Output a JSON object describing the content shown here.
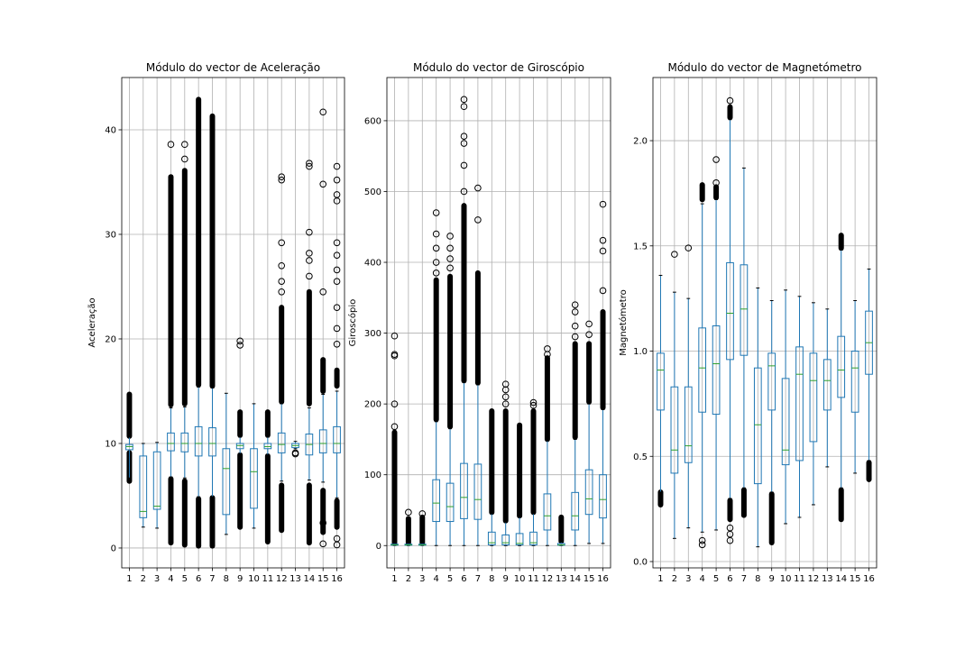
{
  "chart_data": [
    {
      "type": "boxplot",
      "title": "Módulo do vector de Aceleração",
      "ylabel": "Aceleração",
      "categories": [
        "1",
        "2",
        "3",
        "4",
        "5",
        "6",
        "7",
        "8",
        "9",
        "10",
        "11",
        "12",
        "13",
        "14",
        "15",
        "16"
      ],
      "ylim": [
        -1.9,
        45.0
      ],
      "yticks": [
        0,
        10,
        20,
        30,
        40
      ],
      "ytick_labels": [
        "0",
        "10",
        "20",
        "30",
        "40"
      ],
      "grid": true,
      "boxes": [
        {
          "whislo": 6.7,
          "q1": 9.4,
          "med": 9.7,
          "q3": 9.9,
          "whishi": 10.6,
          "fliers_lo": [
            6.4,
            9.1
          ],
          "fliers_hi": [
            10.7,
            14.7
          ]
        },
        {
          "whislo": 2.0,
          "q1": 2.9,
          "med": 3.5,
          "q3": 8.8,
          "whishi": 10.0,
          "fliers_lo": [],
          "fliers_hi": []
        },
        {
          "whislo": 1.9,
          "q1": 3.7,
          "med": 4.0,
          "q3": 9.2,
          "whishi": 10.1,
          "fliers_lo": [],
          "fliers_hi": []
        },
        {
          "whislo": 6.8,
          "q1": 9.3,
          "med": 10.0,
          "q3": 11.0,
          "whishi": 13.4,
          "fliers_lo": [
            0.5,
            6.6
          ],
          "fliers_hi": [
            13.7,
            35.5
          ],
          "extra_fliers": [
            38.6
          ]
        },
        {
          "whislo": 6.7,
          "q1": 9.2,
          "med": 10.0,
          "q3": 11.0,
          "whishi": 13.5,
          "fliers_lo": [
            0.3,
            6.4
          ],
          "fliers_hi": [
            13.8,
            36.1
          ],
          "extra_fliers": [
            37.2,
            38.6
          ]
        },
        {
          "whislo": 4.9,
          "q1": 8.8,
          "med": 10.0,
          "q3": 11.6,
          "whishi": 15.4,
          "fliers_lo": [
            0.2,
            4.7
          ],
          "fliers_hi": [
            15.6,
            42.9
          ]
        },
        {
          "whislo": 4.9,
          "q1": 8.8,
          "med": 10.0,
          "q3": 11.5,
          "whishi": 15.3,
          "fliers_lo": [
            0.2,
            4.8
          ],
          "fliers_hi": [
            15.5,
            41.3
          ]
        },
        {
          "whislo": 1.3,
          "q1": 3.2,
          "med": 7.6,
          "q3": 9.5,
          "whishi": 14.8,
          "fliers_lo": [],
          "fliers_hi": []
        },
        {
          "whislo": 9.0,
          "q1": 9.5,
          "med": 9.8,
          "q3": 10.0,
          "whishi": 10.6,
          "fliers_lo": [
            2.0,
            8.9
          ],
          "fliers_hi": [
            10.8,
            13.0
          ],
          "extra_fliers": [
            19.4,
            19.8
          ]
        },
        {
          "whislo": 1.9,
          "q1": 3.8,
          "med": 7.3,
          "q3": 9.5,
          "whishi": 13.8,
          "fliers_lo": [],
          "fliers_hi": []
        },
        {
          "whislo": 8.9,
          "q1": 9.5,
          "med": 9.7,
          "q3": 10.0,
          "whishi": 10.6,
          "fliers_lo": [
            0.6,
            8.8
          ],
          "fliers_hi": [
            10.8,
            13.0
          ]
        },
        {
          "whislo": 6.4,
          "q1": 9.1,
          "med": 9.9,
          "q3": 11.0,
          "whishi": 13.8,
          "fliers_lo": [
            1.7,
            6.0
          ],
          "fliers_hi": [
            14.0,
            23.0
          ],
          "extra_fliers": [
            24.5,
            25.5,
            27.0,
            29.2,
            35.2,
            35.5
          ]
        },
        {
          "whislo": 9.5,
          "q1": 9.6,
          "med": 9.8,
          "q3": 10.0,
          "whishi": 10.2,
          "fliers_lo": [],
          "fliers_hi": [],
          "extra_fliers": [
            9.0,
            9.1
          ]
        },
        {
          "whislo": 6.5,
          "q1": 8.9,
          "med": 9.9,
          "q3": 10.9,
          "whishi": 13.4,
          "fliers_lo": [
            0.5,
            6.0
          ],
          "fliers_hi": [
            13.8,
            24.5
          ],
          "extra_fliers": [
            26.0,
            27.5,
            28.2,
            30.2,
            36.5,
            36.8
          ]
        },
        {
          "whislo": 6.3,
          "q1": 9.1,
          "med": 10.0,
          "q3": 11.3,
          "whishi": 14.7,
          "fliers_lo": [
            1.5,
            5.5
          ],
          "fliers_hi": [
            15.0,
            18.0
          ],
          "extra_fliers": [
            0.4,
            2.4,
            24.5,
            34.8,
            41.7
          ]
        },
        {
          "whislo": 4.8,
          "q1": 9.1,
          "med": 10.0,
          "q3": 11.6,
          "whishi": 15.0,
          "fliers_lo": [
            2.0,
            4.5
          ],
          "fliers_hi": [
            15.5,
            17.0
          ],
          "extra_fliers": [
            0.3,
            0.9,
            19.5,
            21.0,
            23.0,
            25.5,
            26.6,
            28.0,
            29.2,
            33.2,
            33.8,
            35.2,
            36.5
          ]
        }
      ]
    },
    {
      "type": "boxplot",
      "title": "Módulo do vector de Giroscópio",
      "ylabel": "Giroscópio",
      "categories": [
        "1",
        "2",
        "3",
        "4",
        "5",
        "6",
        "7",
        "8",
        "9",
        "10",
        "11",
        "12",
        "13",
        "14",
        "15",
        "16"
      ],
      "ylim": [
        -31.5,
        661.0
      ],
      "yticks": [
        0,
        100,
        200,
        300,
        400,
        500,
        600
      ],
      "ytick_labels": [
        "0",
        "100",
        "200",
        "300",
        "400",
        "500",
        "600"
      ],
      "grid": true,
      "boxes": [
        {
          "whislo": 0,
          "q1": 0.5,
          "med": 1,
          "q3": 2,
          "whishi": 3,
          "fliers_lo": [],
          "fliers_hi": [
            4,
            160
          ],
          "extra_fliers": [
            168,
            200,
            268,
            270,
            296
          ]
        },
        {
          "whislo": 0,
          "q1": 0.5,
          "med": 1,
          "q3": 2,
          "whishi": 3,
          "fliers_lo": [],
          "fliers_hi": [
            4,
            38
          ],
          "extra_fliers": [
            47
          ]
        },
        {
          "whislo": 0,
          "q1": 0.5,
          "med": 1,
          "q3": 2,
          "whishi": 3,
          "fliers_lo": [],
          "fliers_hi": [
            4,
            40
          ],
          "extra_fliers": [
            45
          ]
        },
        {
          "whislo": 0,
          "q1": 34,
          "med": 60,
          "q3": 93,
          "whishi": 175,
          "fliers_lo": [],
          "fliers_hi": [
            178,
            375
          ],
          "extra_fliers": [
            385,
            400,
            420,
            440,
            470
          ]
        },
        {
          "whislo": 0,
          "q1": 34,
          "med": 55,
          "q3": 88,
          "whishi": 165,
          "fliers_lo": [],
          "fliers_hi": [
            168,
            380
          ],
          "extra_fliers": [
            392,
            405,
            420,
            437
          ]
        },
        {
          "whislo": 0,
          "q1": 38,
          "med": 68,
          "q3": 116,
          "whishi": 230,
          "fliers_lo": [],
          "fliers_hi": [
            233,
            480
          ],
          "extra_fliers": [
            500,
            537,
            568,
            578,
            620,
            630
          ]
        },
        {
          "whislo": 0,
          "q1": 37,
          "med": 65,
          "q3": 115,
          "whishi": 227,
          "fliers_lo": [],
          "fliers_hi": [
            230,
            385
          ],
          "extra_fliers": [
            460,
            505
          ]
        },
        {
          "whislo": 0,
          "q1": 1,
          "med": 4,
          "q3": 19,
          "whishi": 45,
          "fliers_lo": [],
          "fliers_hi": [
            47,
            190
          ]
        },
        {
          "whislo": 0,
          "q1": 1,
          "med": 4,
          "q3": 15,
          "whishi": 33,
          "fliers_lo": [],
          "fliers_hi": [
            35,
            190
          ],
          "extra_fliers": [
            200,
            210,
            220,
            228
          ]
        },
        {
          "whislo": 0,
          "q1": 1,
          "med": 3,
          "q3": 17,
          "whishi": 40,
          "fliers_lo": [],
          "fliers_hi": [
            42,
            170
          ]
        },
        {
          "whislo": 0,
          "q1": 1,
          "med": 4,
          "q3": 19,
          "whishi": 45,
          "fliers_lo": [],
          "fliers_hi": [
            47,
            190
          ],
          "extra_fliers": [
            198,
            202
          ]
        },
        {
          "whislo": 0,
          "q1": 22,
          "med": 42,
          "q3": 73,
          "whishi": 148,
          "fliers_lo": [],
          "fliers_hi": [
            150,
            265
          ],
          "extra_fliers": [
            270,
            278
          ]
        },
        {
          "whislo": 0,
          "q1": 0.5,
          "med": 1,
          "q3": 3,
          "whishi": 5,
          "fliers_lo": [],
          "fliers_hi": [
            6,
            40
          ]
        },
        {
          "whislo": 0,
          "q1": 22,
          "med": 42,
          "q3": 75,
          "whishi": 150,
          "fliers_lo": [],
          "fliers_hi": [
            153,
            285
          ],
          "extra_fliers": [
            295,
            310,
            330,
            340
          ]
        },
        {
          "whislo": 3,
          "q1": 44,
          "med": 66,
          "q3": 107,
          "whishi": 200,
          "fliers_lo": [],
          "fliers_hi": [
            203,
            285
          ],
          "extra_fliers": [
            298,
            313
          ]
        },
        {
          "whislo": 3,
          "q1": 39,
          "med": 65,
          "q3": 100,
          "whishi": 192,
          "fliers_lo": [],
          "fliers_hi": [
            195,
            330
          ],
          "extra_fliers": [
            360,
            416,
            431,
            482
          ]
        }
      ]
    },
    {
      "type": "boxplot",
      "title": "Módulo do vector de Magnetómetro",
      "ylabel": "Magnetómetro",
      "categories": [
        "1",
        "2",
        "3",
        "4",
        "5",
        "6",
        "7",
        "8",
        "9",
        "10",
        "11",
        "12",
        "13",
        "14",
        "15",
        "16"
      ],
      "ylim": [
        -0.03,
        2.3
      ],
      "yticks": [
        0.0,
        0.5,
        1.0,
        1.5,
        2.0
      ],
      "ytick_labels": [
        "0.0",
        "0.5",
        "1.0",
        "1.5",
        "2.0"
      ],
      "grid": true,
      "boxes": [
        {
          "whislo": 0.33,
          "q1": 0.72,
          "med": 0.91,
          "q3": 0.99,
          "whishi": 1.36,
          "fliers_lo": [
            0.27,
            0.33
          ],
          "fliers_hi": []
        },
        {
          "whislo": 0.11,
          "q1": 0.42,
          "med": 0.53,
          "q3": 0.83,
          "whishi": 1.28,
          "fliers_lo": [],
          "fliers_hi": [],
          "extra_fliers": [
            1.46
          ]
        },
        {
          "whislo": 0.16,
          "q1": 0.47,
          "med": 0.55,
          "q3": 0.83,
          "whishi": 1.25,
          "fliers_lo": [],
          "fliers_hi": [],
          "extra_fliers": [
            1.49
          ]
        },
        {
          "whislo": 0.14,
          "q1": 0.71,
          "med": 0.92,
          "q3": 1.11,
          "whishi": 1.7,
          "fliers_lo": [],
          "fliers_hi": [
            1.72,
            1.79
          ],
          "extra_fliers": [
            0.08,
            0.1
          ]
        },
        {
          "whislo": 0.15,
          "q1": 0.7,
          "med": 0.94,
          "q3": 1.12,
          "whishi": 1.72,
          "fliers_lo": [],
          "fliers_hi": [
            1.73,
            1.78
          ],
          "extra_fliers": [
            1.8,
            1.91
          ]
        },
        {
          "whislo": 0.3,
          "q1": 0.96,
          "med": 1.18,
          "q3": 1.42,
          "whishi": 2.1,
          "fliers_lo": [
            0.2,
            0.29
          ],
          "fliers_hi": [
            2.11,
            2.16
          ],
          "extra_fliers": [
            0.1,
            0.13,
            0.16,
            2.19
          ]
        },
        {
          "whislo": 0.35,
          "q1": 0.98,
          "med": 1.2,
          "q3": 1.41,
          "whishi": 1.87,
          "fliers_lo": [
            0.22,
            0.34
          ],
          "fliers_hi": []
        },
        {
          "whislo": 0.07,
          "q1": 0.37,
          "med": 0.65,
          "q3": 0.92,
          "whishi": 1.3,
          "fliers_lo": [],
          "fliers_hi": []
        },
        {
          "whislo": 0.33,
          "q1": 0.72,
          "med": 0.93,
          "q3": 0.99,
          "whishi": 1.24,
          "fliers_lo": [
            0.09,
            0.32
          ],
          "fliers_hi": []
        },
        {
          "whislo": 0.18,
          "q1": 0.46,
          "med": 0.53,
          "q3": 0.87,
          "whishi": 1.29,
          "fliers_lo": [],
          "fliers_hi": []
        },
        {
          "whislo": 0.21,
          "q1": 0.48,
          "med": 0.89,
          "q3": 1.02,
          "whishi": 1.26,
          "fliers_lo": [],
          "fliers_hi": []
        },
        {
          "whislo": 0.27,
          "q1": 0.57,
          "med": 0.86,
          "q3": 0.99,
          "whishi": 1.23,
          "fliers_lo": [],
          "fliers_hi": []
        },
        {
          "whislo": 0.45,
          "q1": 0.72,
          "med": 0.86,
          "q3": 0.96,
          "whishi": 1.2,
          "fliers_lo": [],
          "fliers_hi": []
        },
        {
          "whislo": 0.35,
          "q1": 0.78,
          "med": 0.91,
          "q3": 1.07,
          "whishi": 1.48,
          "fliers_lo": [
            0.2,
            0.34
          ],
          "fliers_hi": [
            1.49,
            1.55
          ]
        },
        {
          "whislo": 0.42,
          "q1": 0.71,
          "med": 0.92,
          "q3": 1.0,
          "whishi": 1.24,
          "fliers_lo": [],
          "fliers_hi": []
        },
        {
          "whislo": 0.48,
          "q1": 0.89,
          "med": 1.04,
          "q3": 1.19,
          "whishi": 1.39,
          "fliers_lo": [
            0.39,
            0.47
          ],
          "fliers_hi": []
        }
      ]
    }
  ],
  "colors": {
    "box": "#1f77b4",
    "median": "#2ca02c",
    "whisker": "#000000",
    "flier": "#000000",
    "grid": "#b0b0b0",
    "axes": "#000000"
  }
}
